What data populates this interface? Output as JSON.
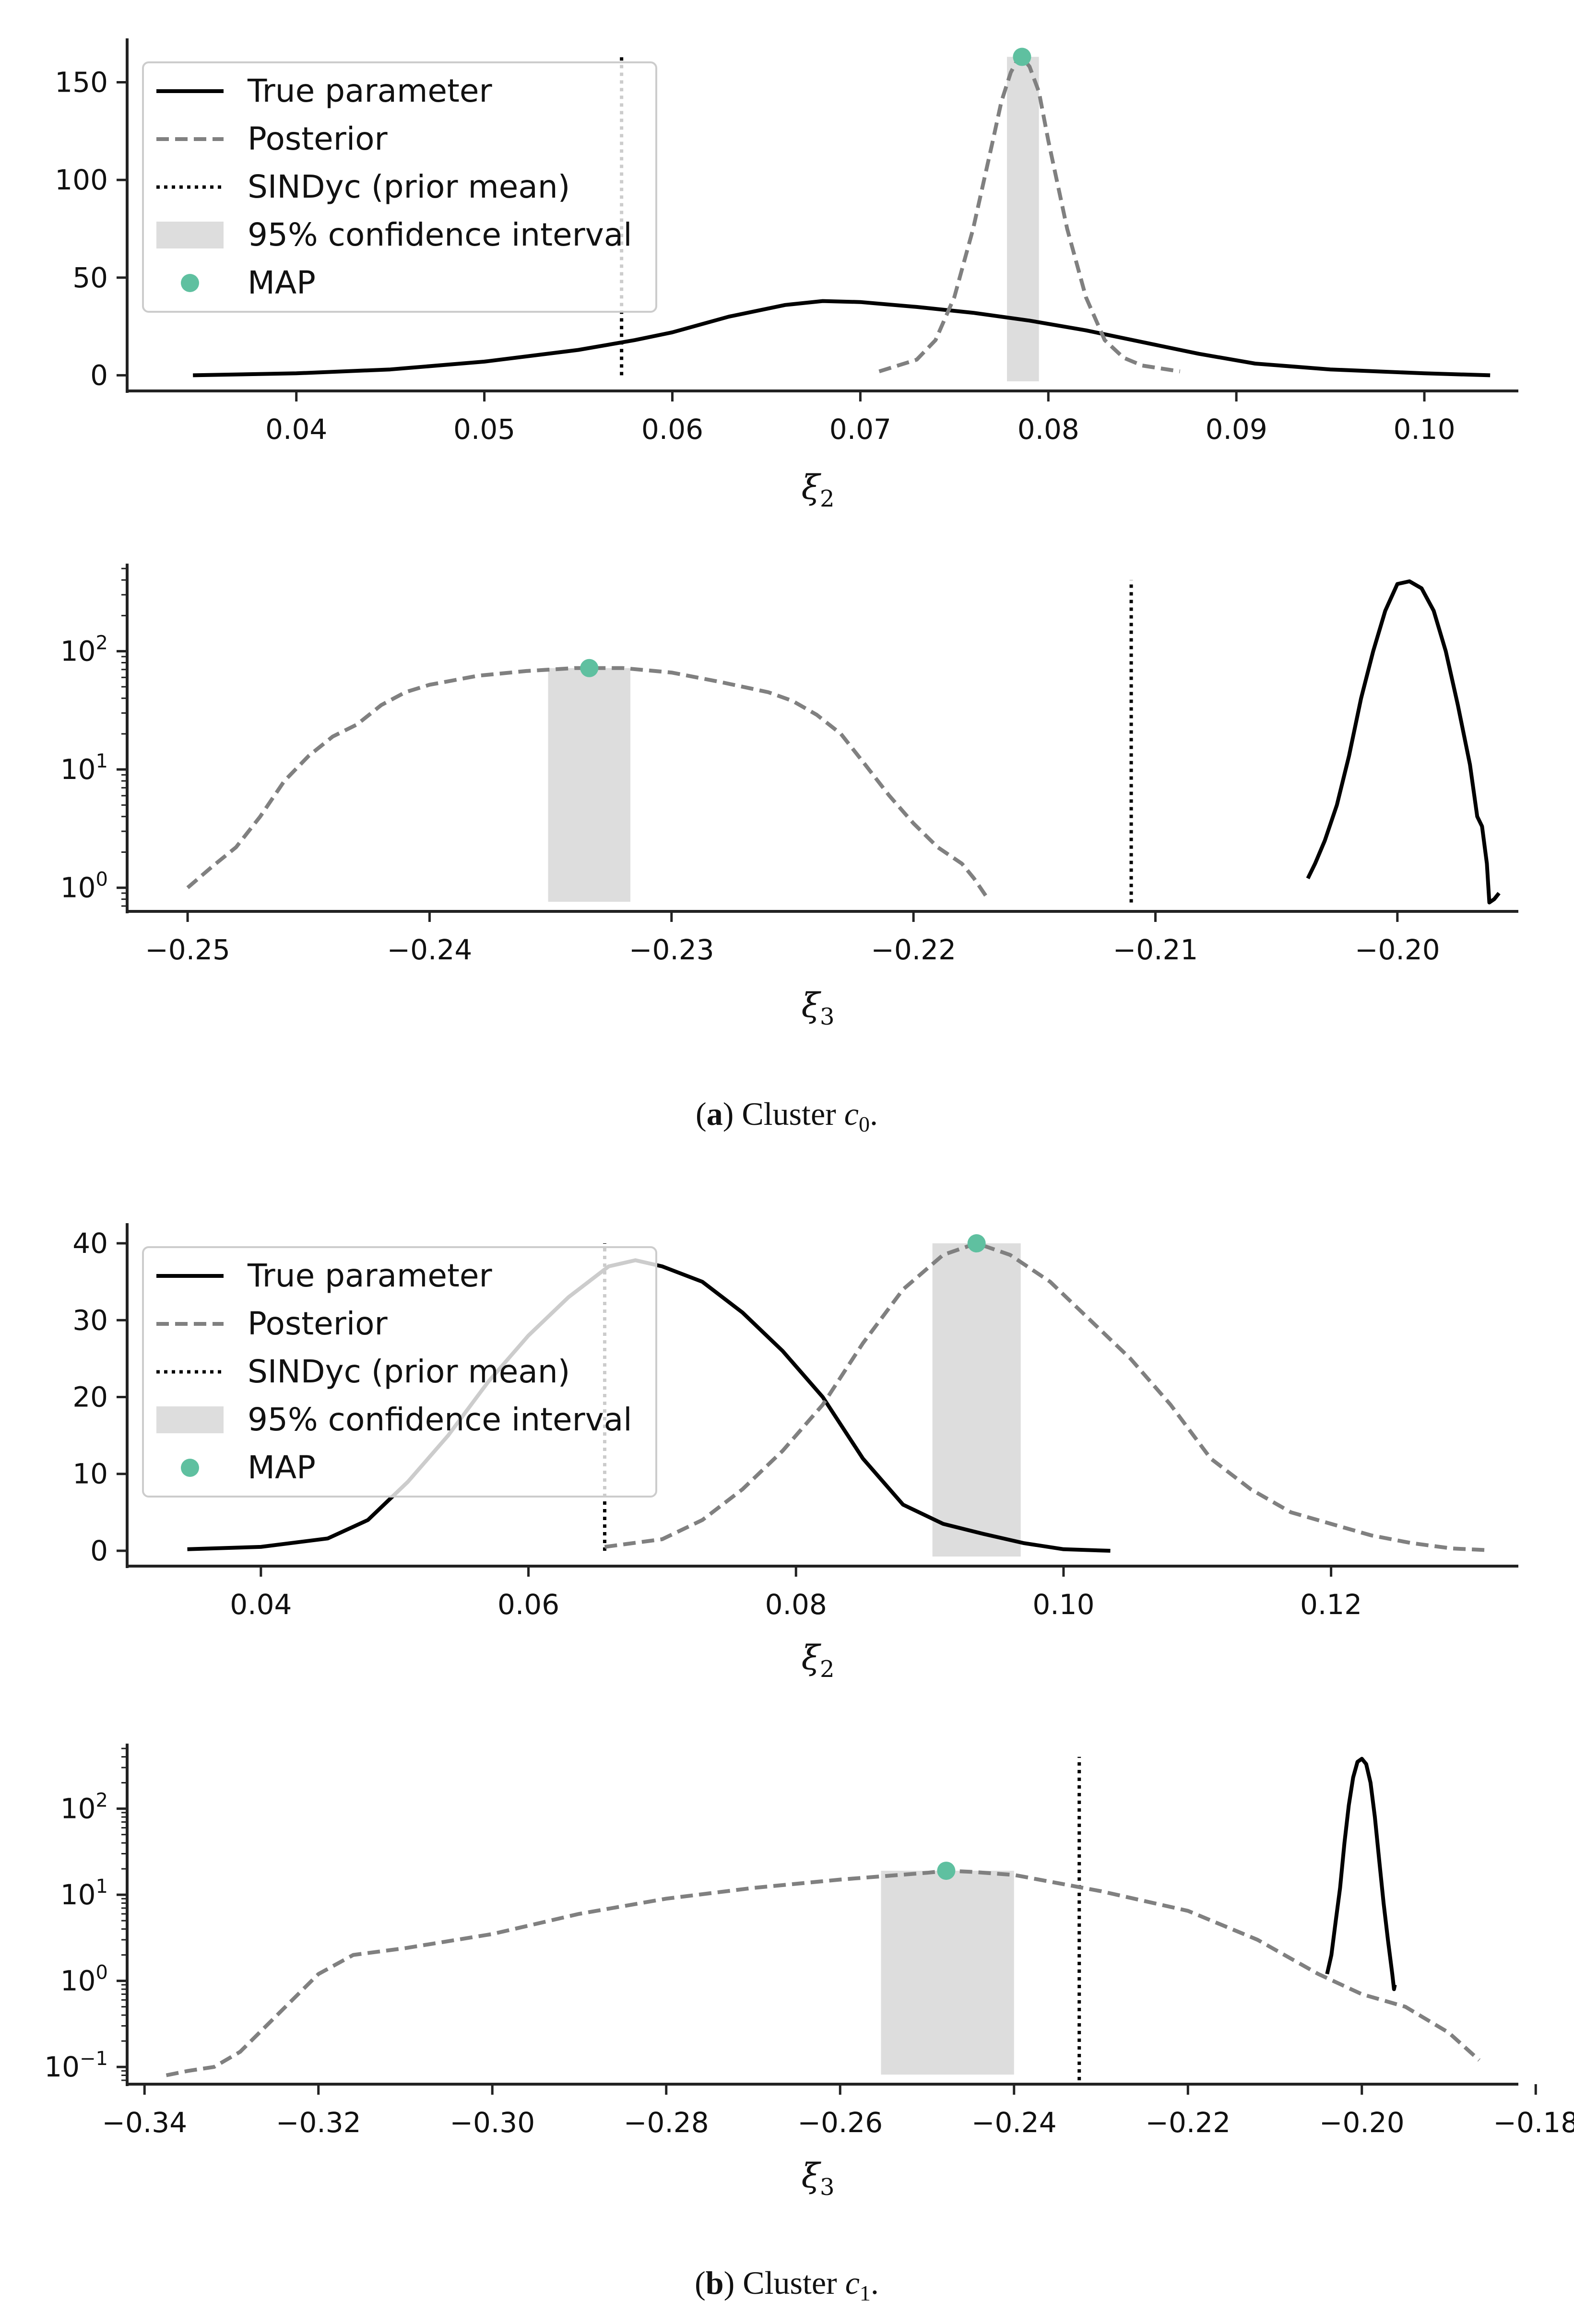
{
  "legend": {
    "true_parameter": "True parameter",
    "posterior": "Posterior",
    "sindyc": "SINDyc (prior mean)",
    "ci": "95% confidence interval",
    "map": "MAP"
  },
  "colors": {
    "true": "#000000",
    "posterior": "#808080",
    "sindyc": "#000000",
    "ci": "#dddddd",
    "map": "#5fc0a0",
    "axis": "#222222"
  },
  "captions": {
    "a": {
      "label": "a",
      "text": "Cluster",
      "var": "c",
      "sub": "0",
      "end": "."
    },
    "b": {
      "label": "b",
      "text": "Cluster",
      "var": "c",
      "sub": "1",
      "end": "."
    }
  },
  "chart_data": [
    {
      "id": "a_xi2",
      "type": "line",
      "scale": "linear",
      "xlabel_var": "ξ",
      "xlabel_sub": "2",
      "xlim": [
        0.031,
        0.105
      ],
      "ylim": [
        -8,
        170
      ],
      "xticks": [
        0.04,
        0.05,
        0.06,
        0.07,
        0.08,
        0.09,
        0.1
      ],
      "xtick_labels": [
        "0.04",
        "0.05",
        "0.06",
        "0.07",
        "0.08",
        "0.09",
        "0.10"
      ],
      "yticks": [
        0,
        50,
        100,
        150
      ],
      "ytick_labels": [
        "0",
        "50",
        "100",
        "150"
      ],
      "legend": true,
      "sindyc_x": 0.0573,
      "sindyc_y": [
        0,
        165
      ],
      "ci": [
        0.0778,
        0.0795
      ],
      "map": {
        "x": 0.0786,
        "y": 163
      },
      "series": [
        {
          "name": "True parameter",
          "style": "solid",
          "x": [
            0.0345,
            0.04,
            0.045,
            0.05,
            0.055,
            0.058,
            0.06,
            0.063,
            0.066,
            0.068,
            0.07,
            0.073,
            0.076,
            0.079,
            0.082,
            0.085,
            0.088,
            0.091,
            0.095,
            0.1,
            0.1035
          ],
          "y": [
            0,
            1,
            3,
            7,
            13,
            18,
            22,
            30,
            36,
            38,
            37.5,
            35,
            32,
            28,
            23,
            17,
            11,
            6,
            3,
            1,
            0
          ]
        },
        {
          "name": "Posterior",
          "style": "dashed",
          "x": [
            0.071,
            0.073,
            0.074,
            0.075,
            0.076,
            0.077,
            0.0775,
            0.078,
            0.0785,
            0.079,
            0.0795,
            0.08,
            0.081,
            0.082,
            0.083,
            0.084,
            0.085,
            0.087
          ],
          "y": [
            2,
            8,
            18,
            40,
            75,
            118,
            140,
            155,
            164,
            158,
            145,
            120,
            75,
            40,
            18,
            9,
            5,
            2
          ]
        }
      ]
    },
    {
      "id": "a_xi3",
      "type": "line",
      "scale": "log",
      "xlabel_var": "ξ",
      "xlabel_sub": "3",
      "xlim": [
        -0.2525,
        -0.195
      ],
      "ylim_log10": [
        -0.2,
        2.7
      ],
      "xticks": [
        -0.25,
        -0.24,
        -0.23,
        -0.22,
        -0.21,
        -0.2
      ],
      "xtick_labels": [
        "−0.25",
        "−0.24",
        "−0.23",
        "−0.22",
        "−0.21",
        "−0.20"
      ],
      "yticks": [
        1,
        10,
        100
      ],
      "ytick_labels": [
        {
          "base": "10",
          "exp": "0"
        },
        {
          "base": "10",
          "exp": "1"
        },
        {
          "base": "10",
          "exp": "2"
        }
      ],
      "legend": false,
      "sindyc_x": -0.211,
      "sindyc_y": [
        0.75,
        400
      ],
      "ci": [
        -0.2351,
        -0.2317
      ],
      "map": {
        "x": -0.2334,
        "y": 72
      },
      "series": [
        {
          "name": "True parameter",
          "style": "solid",
          "x": [
            -0.2037,
            -0.2034,
            -0.203,
            -0.2025,
            -0.202,
            -0.2015,
            -0.201,
            -0.2005,
            -0.2,
            -0.1995,
            -0.199,
            -0.1985,
            -0.198,
            -0.1975,
            -0.197,
            -0.1967,
            -0.1965,
            -0.1963,
            -0.1962,
            -0.196,
            -0.1958
          ],
          "y": [
            1.2,
            1.6,
            2.5,
            5,
            13,
            40,
            100,
            220,
            370,
            390,
            340,
            220,
            100,
            35,
            11,
            4,
            3.3,
            1.6,
            0.75,
            0.8,
            0.9
          ]
        },
        {
          "name": "Posterior",
          "style": "dashed",
          "x": [
            -0.25,
            -0.249,
            -0.248,
            -0.247,
            -0.246,
            -0.245,
            -0.244,
            -0.243,
            -0.242,
            -0.241,
            -0.24,
            -0.238,
            -0.236,
            -0.234,
            -0.232,
            -0.23,
            -0.228,
            -0.226,
            -0.225,
            -0.224,
            -0.223,
            -0.222,
            -0.221,
            -0.22,
            -0.219,
            -0.218,
            -0.2175,
            -0.217
          ],
          "y": [
            1,
            1.5,
            2.2,
            4,
            8,
            13,
            19,
            24,
            35,
            45,
            52,
            62,
            68,
            72,
            72,
            66,
            55,
            45,
            38,
            29,
            20,
            11,
            6,
            3.5,
            2.2,
            1.6,
            1.2,
            0.85
          ]
        }
      ]
    },
    {
      "id": "b_xi2",
      "type": "line",
      "scale": "linear",
      "xlabel_var": "ξ",
      "xlabel_sub": "2",
      "xlim": [
        0.03,
        0.134
      ],
      "ylim": [
        -2,
        42
      ],
      "xticks": [
        0.04,
        0.06,
        0.08,
        0.1,
        0.12
      ],
      "xtick_labels": [
        "0.04",
        "0.06",
        "0.08",
        "0.10",
        "0.12"
      ],
      "yticks": [
        0,
        10,
        20,
        30,
        40
      ],
      "ytick_labels": [
        "0",
        "10",
        "20",
        "30",
        "40"
      ],
      "legend": true,
      "sindyc_x": 0.0657,
      "sindyc_y": [
        0,
        40
      ],
      "ci": [
        0.0902,
        0.0968
      ],
      "map": {
        "x": 0.0935,
        "y": 40
      },
      "series": [
        {
          "name": "True parameter",
          "style": "solid",
          "x": [
            0.0345,
            0.04,
            0.045,
            0.048,
            0.051,
            0.054,
            0.057,
            0.06,
            0.063,
            0.066,
            0.068,
            0.07,
            0.073,
            0.076,
            0.079,
            0.082,
            0.085,
            0.088,
            0.091,
            0.094,
            0.097,
            0.1,
            0.1035
          ],
          "y": [
            0.2,
            0.5,
            1.6,
            4,
            9,
            15,
            22,
            28,
            33,
            37,
            37.8,
            37,
            35,
            31,
            26,
            20,
            12,
            6,
            3.5,
            2.2,
            1,
            0.2,
            0
          ]
        },
        {
          "name": "Posterior",
          "style": "dashed",
          "x": [
            0.0657,
            0.07,
            0.073,
            0.076,
            0.079,
            0.082,
            0.085,
            0.088,
            0.091,
            0.0935,
            0.096,
            0.099,
            0.102,
            0.105,
            0.108,
            0.111,
            0.114,
            0.117,
            0.12,
            0.123,
            0.126,
            0.129,
            0.1315
          ],
          "y": [
            0.5,
            1.5,
            4,
            8,
            13,
            19,
            27,
            34,
            38.5,
            40,
            38.5,
            35,
            30,
            25,
            19,
            12,
            8,
            5,
            3.5,
            2,
            1,
            0.3,
            0.1
          ]
        }
      ]
    },
    {
      "id": "b_xi3",
      "type": "line",
      "scale": "log",
      "xlabel_var": "ξ",
      "xlabel_sub": "3",
      "xlim": [
        -0.342,
        -0.182
      ],
      "ylim_log10": [
        -1.2,
        2.7
      ],
      "xticks": [
        -0.34,
        -0.32,
        -0.3,
        -0.28,
        -0.26,
        -0.24,
        -0.22,
        -0.2,
        -0.18
      ],
      "xtick_labels": [
        "−0.34",
        "−0.32",
        "−0.30",
        "−0.28",
        "−0.26",
        "−0.24",
        "−0.22",
        "−0.20",
        "−0.18"
      ],
      "yticks": [
        0.1,
        1,
        10,
        100
      ],
      "ytick_labels": [
        {
          "base": "10",
          "exp": "−1"
        },
        {
          "base": "10",
          "exp": "0"
        },
        {
          "base": "10",
          "exp": "1"
        },
        {
          "base": "10",
          "exp": "2"
        }
      ],
      "legend": false,
      "sindyc_x": -0.2325,
      "sindyc_y": [
        0.07,
        400
      ],
      "ci": [
        -0.2553,
        -0.24
      ],
      "map": {
        "x": -0.2478,
        "y": 19
      },
      "series": [
        {
          "name": "True parameter",
          "style": "solid",
          "x": [
            -0.204,
            -0.2035,
            -0.203,
            -0.2025,
            -0.202,
            -0.2015,
            -0.201,
            -0.2005,
            -0.2,
            -0.1995,
            -0.199,
            -0.1985,
            -0.198,
            -0.1975,
            -0.197,
            -0.1965,
            -0.1963,
            -0.1962
          ],
          "y": [
            1.2,
            2,
            5,
            12,
            40,
            110,
            230,
            350,
            380,
            330,
            200,
            80,
            25,
            8,
            3,
            1.2,
            0.8,
            0.9
          ]
        },
        {
          "name": "Posterior",
          "style": "dashed",
          "x": [
            -0.3375,
            -0.335,
            -0.332,
            -0.329,
            -0.326,
            -0.323,
            -0.32,
            -0.316,
            -0.31,
            -0.3,
            -0.29,
            -0.28,
            -0.27,
            -0.26,
            -0.25,
            -0.2478,
            -0.245,
            -0.24,
            -0.23,
            -0.22,
            -0.212,
            -0.205,
            -0.2,
            -0.195,
            -0.19,
            -0.1865
          ],
          "y": [
            0.08,
            0.09,
            0.1,
            0.15,
            0.3,
            0.6,
            1.2,
            2,
            2.4,
            3.5,
            6,
            9,
            12,
            15,
            18,
            19,
            18.5,
            17,
            11,
            6.5,
            3,
            1.2,
            0.7,
            0.5,
            0.25,
            0.12
          ]
        }
      ]
    }
  ]
}
